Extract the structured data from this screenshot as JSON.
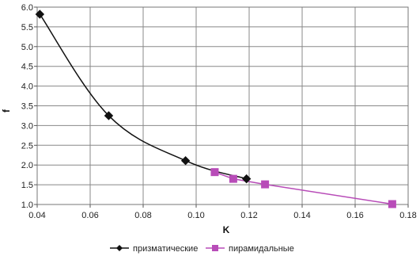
{
  "chart_data": {
    "type": "line",
    "title": "",
    "xlabel": "K",
    "ylabel": "f",
    "xlim": [
      0.04,
      0.18
    ],
    "ylim": [
      1.0,
      6.0
    ],
    "xticks": [
      "0.04",
      "0.06",
      "0.08",
      "0.10",
      "0.12",
      "0.14",
      "0.16",
      "0.18"
    ],
    "yticks": [
      "1.0",
      "1.5",
      "2.0",
      "2.5",
      "3.0",
      "3.5",
      "4.0",
      "4.5",
      "5.0",
      "5.5",
      "6.0"
    ],
    "xtick_values": [
      0.04,
      0.06,
      0.08,
      0.1,
      0.12,
      0.14,
      0.16,
      0.18
    ],
    "ytick_values": [
      1.0,
      1.5,
      2.0,
      2.5,
      3.0,
      3.5,
      4.0,
      4.5,
      5.0,
      5.5,
      6.0
    ],
    "grid": true,
    "legend_position": "bottom",
    "series": [
      {
        "name": "призматические",
        "color": "#111111",
        "marker": "diamond",
        "smooth": true,
        "points": [
          {
            "x": 0.041,
            "y": 5.82
          },
          {
            "x": 0.067,
            "y": 3.25
          },
          {
            "x": 0.096,
            "y": 2.11
          },
          {
            "x": 0.119,
            "y": 1.65
          }
        ]
      },
      {
        "name": "пирамидальные",
        "color": "#b84cb8",
        "marker": "square",
        "smooth": false,
        "points": [
          {
            "x": 0.107,
            "y": 1.82
          },
          {
            "x": 0.114,
            "y": 1.65
          },
          {
            "x": 0.126,
            "y": 1.51
          },
          {
            "x": 0.174,
            "y": 1.01
          }
        ]
      }
    ]
  }
}
